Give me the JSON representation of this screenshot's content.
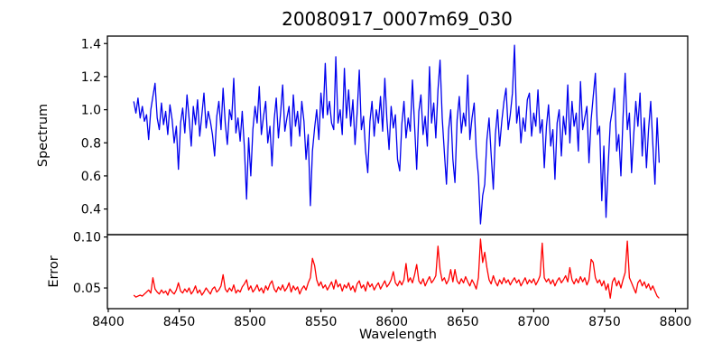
{
  "title": "20080917_0007m69_030",
  "chart_data": {
    "type": "line",
    "title": "20080917_0007m69_030",
    "xlabel": "Wavelength",
    "x_range": [
      8399.4,
      8808.6
    ],
    "x_ticks": [
      8400,
      8450,
      8500,
      8550,
      8600,
      8650,
      8700,
      8750,
      8800
    ],
    "x_tick_labels": [
      "8400",
      "8450",
      "8500",
      "8550",
      "8600",
      "8650",
      "8700",
      "8750",
      "8800"
    ],
    "grid": false,
    "legend": "none",
    "panels": [
      {
        "name": "spectrum",
        "ylabel": "Spectrum",
        "y_range": [
          0.245,
          1.445
        ],
        "y_ticks": [
          0.4,
          0.6,
          0.8,
          1.0,
          1.2,
          1.4
        ],
        "y_tick_labels": [
          "0.4",
          "0.6",
          "0.8",
          "1.0",
          "1.2",
          "1.4"
        ],
        "line_color": "#0000ee",
        "x_start": 8418,
        "x_step": 1.5,
        "values": [
          1.05,
          0.98,
          1.07,
          0.95,
          1.02,
          0.93,
          0.97,
          0.82,
          1.0,
          1.08,
          1.16,
          0.95,
          0.88,
          1.04,
          0.91,
          0.99,
          0.85,
          1.03,
          0.94,
          0.8,
          0.9,
          0.64,
          0.92,
          1.01,
          0.86,
          1.09,
          0.95,
          0.78,
          1.02,
          0.91,
          1.06,
          0.84,
          0.97,
          1.1,
          0.89,
          0.99,
          0.93,
          0.85,
          0.72,
          0.96,
          1.05,
          0.88,
          1.13,
          0.92,
          0.79,
          1.0,
          0.94,
          1.19,
          0.86,
          0.95,
          0.81,
          0.99,
          0.77,
          0.46,
          0.83,
          0.6,
          0.88,
          1.02,
          0.92,
          1.14,
          0.85,
          0.96,
          1.05,
          0.8,
          0.9,
          0.66,
          0.94,
          1.07,
          0.83,
          0.98,
          1.15,
          0.87,
          0.95,
          1.02,
          0.78,
          1.09,
          0.9,
          0.99,
          0.84,
          1.05,
          0.93,
          0.7,
          0.85,
          0.42,
          0.75,
          0.89,
          1.0,
          0.82,
          1.1,
          0.95,
          1.28,
          0.97,
          1.05,
          0.92,
          0.88,
          1.32,
          0.92,
          1.0,
          0.85,
          1.25,
          0.95,
          1.12,
          0.9,
          1.06,
          0.79,
          0.98,
          1.24,
          0.88,
          0.96,
          0.75,
          0.62,
          0.93,
          1.05,
          0.84,
          1.0,
          0.92,
          1.08,
          0.87,
          1.19,
          0.94,
          0.76,
          1.02,
          0.89,
          0.97,
          0.7,
          0.63,
          0.91,
          1.05,
          0.83,
          0.95,
          0.87,
          1.18,
          0.9,
          0.64,
          0.99,
          1.09,
          0.85,
          0.96,
          0.78,
          1.26,
          0.92,
          1.04,
          0.83,
          1.12,
          1.3,
          0.95,
          0.74,
          0.55,
          0.88,
          1.0,
          0.7,
          0.56,
          0.94,
          1.08,
          0.86,
          0.98,
          0.9,
          1.21,
          0.82,
          0.95,
          1.04,
          0.75,
          0.6,
          0.31,
          0.48,
          0.55,
          0.82,
          0.95,
          0.73,
          0.52,
          0.85,
          1.0,
          0.78,
          0.93,
          1.05,
          1.13,
          0.88,
          0.97,
          1.1,
          1.39,
          0.92,
          1.02,
          0.8,
          0.95,
          0.87,
          1.06,
          1.1,
          0.84,
          0.98,
          0.9,
          1.12,
          0.86,
          0.94,
          0.65,
          0.9,
          1.03,
          0.78,
          0.88,
          0.58,
          0.92,
          1.0,
          0.72,
          0.96,
          0.85,
          1.15,
          0.8,
          1.05,
          0.9,
          0.98,
          0.75,
          1.17,
          0.88,
          0.95,
          1.02,
          0.68,
          0.94,
          1.08,
          1.22,
          0.85,
          0.9,
          0.45,
          0.78,
          0.35,
          0.65,
          0.92,
          1.0,
          1.13,
          0.75,
          0.85,
          0.6,
          0.95,
          1.22,
          0.88,
          0.98,
          0.62,
          0.84,
          1.05,
          0.9,
          1.1,
          0.72,
          0.95,
          0.65,
          0.88,
          1.05,
          0.8,
          0.55,
          0.95,
          0.68
        ]
      },
      {
        "name": "error",
        "ylabel": "Error",
        "y_range": [
          0.0297,
          0.1023
        ],
        "y_ticks": [
          0.05,
          0.1
        ],
        "y_tick_labels": [
          "0.05",
          "0.10"
        ],
        "line_color": "#ff0000",
        "x_start": 8418,
        "x_step": 1.5,
        "values": [
          0.043,
          0.041,
          0.042,
          0.043,
          0.042,
          0.044,
          0.046,
          0.048,
          0.045,
          0.06,
          0.049,
          0.046,
          0.044,
          0.048,
          0.045,
          0.047,
          0.043,
          0.049,
          0.046,
          0.044,
          0.048,
          0.055,
          0.047,
          0.045,
          0.049,
          0.046,
          0.05,
          0.044,
          0.047,
          0.052,
          0.045,
          0.048,
          0.043,
          0.046,
          0.05,
          0.047,
          0.044,
          0.049,
          0.051,
          0.046,
          0.048,
          0.052,
          0.063,
          0.049,
          0.046,
          0.05,
          0.047,
          0.053,
          0.045,
          0.048,
          0.046,
          0.051,
          0.054,
          0.058,
          0.048,
          0.052,
          0.046,
          0.049,
          0.053,
          0.047,
          0.05,
          0.045,
          0.052,
          0.048,
          0.054,
          0.057,
          0.049,
          0.046,
          0.051,
          0.048,
          0.053,
          0.047,
          0.05,
          0.055,
          0.046,
          0.052,
          0.048,
          0.051,
          0.044,
          0.049,
          0.052,
          0.048,
          0.055,
          0.06,
          0.079,
          0.072,
          0.058,
          0.052,
          0.056,
          0.05,
          0.053,
          0.048,
          0.052,
          0.056,
          0.049,
          0.058,
          0.051,
          0.054,
          0.047,
          0.053,
          0.05,
          0.055,
          0.048,
          0.052,
          0.046,
          0.054,
          0.057,
          0.05,
          0.053,
          0.047,
          0.056,
          0.051,
          0.054,
          0.048,
          0.052,
          0.055,
          0.049,
          0.053,
          0.057,
          0.051,
          0.054,
          0.058,
          0.066,
          0.055,
          0.052,
          0.057,
          0.053,
          0.058,
          0.074,
          0.056,
          0.06,
          0.055,
          0.063,
          0.073,
          0.057,
          0.054,
          0.059,
          0.052,
          0.057,
          0.061,
          0.055,
          0.058,
          0.062,
          0.091,
          0.068,
          0.057,
          0.06,
          0.054,
          0.058,
          0.068,
          0.056,
          0.068,
          0.057,
          0.054,
          0.059,
          0.055,
          0.061,
          0.056,
          0.052,
          0.058,
          0.054,
          0.049,
          0.06,
          0.098,
          0.075,
          0.085,
          0.07,
          0.058,
          0.054,
          0.062,
          0.056,
          0.052,
          0.058,
          0.054,
          0.06,
          0.055,
          0.058,
          0.053,
          0.057,
          0.06,
          0.055,
          0.058,
          0.052,
          0.056,
          0.06,
          0.054,
          0.058,
          0.055,
          0.059,
          0.053,
          0.057,
          0.062,
          0.094,
          0.06,
          0.056,
          0.059,
          0.054,
          0.058,
          0.052,
          0.057,
          0.06,
          0.055,
          0.058,
          0.062,
          0.056,
          0.07,
          0.058,
          0.054,
          0.059,
          0.055,
          0.061,
          0.056,
          0.06,
          0.053,
          0.058,
          0.078,
          0.075,
          0.06,
          0.055,
          0.058,
          0.052,
          0.057,
          0.048,
          0.054,
          0.04,
          0.056,
          0.06,
          0.052,
          0.057,
          0.05,
          0.058,
          0.065,
          0.096,
          0.06,
          0.055,
          0.05,
          0.045,
          0.055,
          0.058,
          0.052,
          0.056,
          0.05,
          0.054,
          0.048,
          0.052,
          0.047,
          0.042,
          0.04
        ]
      }
    ]
  },
  "colors": {
    "spectrum_line": "#0000ee",
    "error_line": "#ff0000",
    "axis": "#000000",
    "background": "#ffffff"
  }
}
